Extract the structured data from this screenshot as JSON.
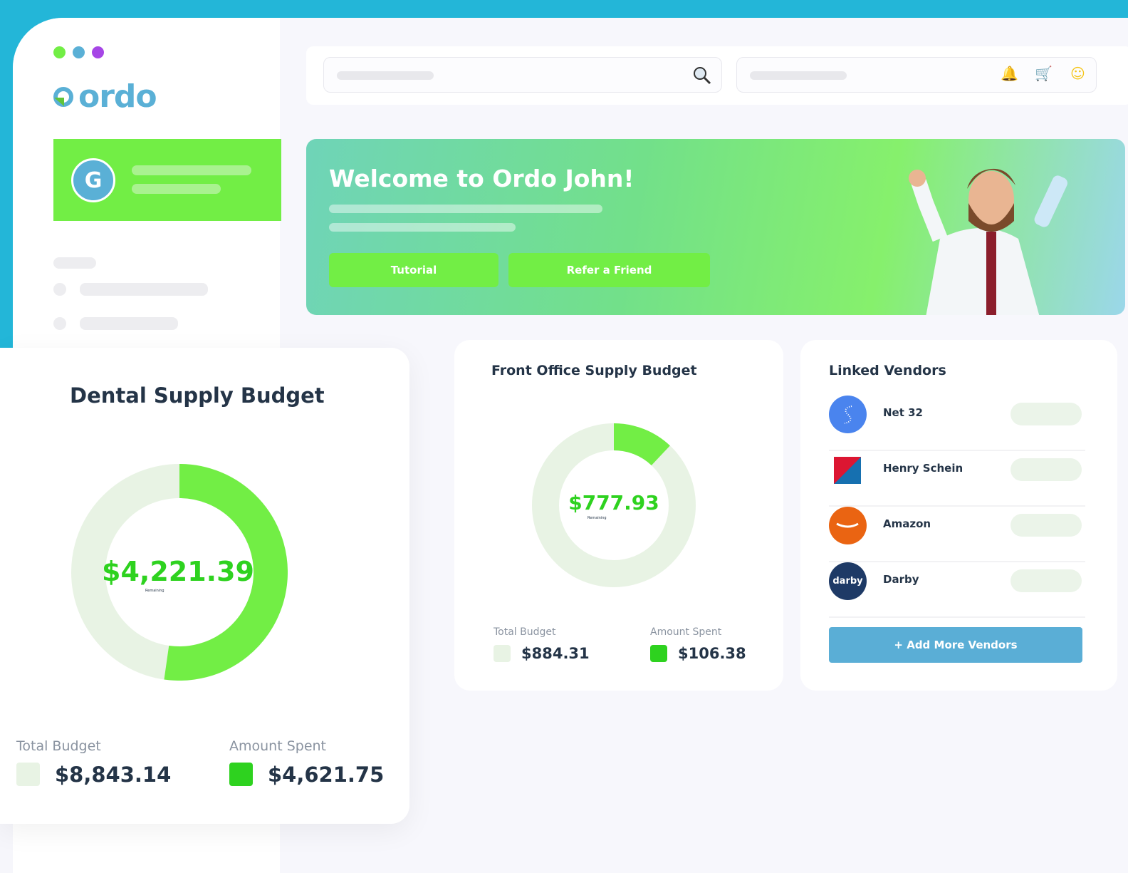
{
  "window_dots": [
    "#72ee45",
    "#5ab0d6",
    "#a646e6"
  ],
  "brand": {
    "logo": "ordo",
    "color": "#5ab0d6"
  },
  "user": {
    "avatar_letter": "G"
  },
  "header": {
    "icons": [
      "search-icon",
      "bell-icon",
      "cart-icon",
      "smiley-icon"
    ]
  },
  "banner": {
    "title": "Welcome to Ordo John!",
    "tutorial_label": "Tutorial",
    "refer_label": "Refer a Friend"
  },
  "dental": {
    "title": "Dental Supply Budget",
    "remaining": "$4,221.39",
    "remaining_label": "Remaining",
    "total_label": "Total Budget",
    "total": "$8,843.14",
    "spent_label": "Amount Spent",
    "spent": "$4,621.75"
  },
  "front": {
    "title": "Front Office Supply Budget",
    "remaining": "$777.93",
    "remaining_label": "Remaining",
    "total_label": "Total Budget",
    "total": "$884.31",
    "spent_label": "Amount Spent",
    "spent": "$106.38"
  },
  "vendors": {
    "title": "Linked Vendors",
    "items": [
      {
        "name": "Net 32",
        "color": "#4a84ee"
      },
      {
        "name": "Henry Schein",
        "color": "#1670b0"
      },
      {
        "name": "Amazon",
        "color": "#ea6412"
      },
      {
        "name": "Darby",
        "color": "#1e3a66"
      }
    ],
    "add_label": "+ Add More Vendors"
  },
  "chart_data": [
    {
      "type": "pie",
      "title": "Dental Supply Budget",
      "total": 8843.14,
      "spent": 4621.75,
      "remaining": 4221.39,
      "colors": {
        "spent": "#72ee45",
        "remaining": "#e8f3e4"
      }
    },
    {
      "type": "pie",
      "title": "Front Office Supply Budget",
      "total": 884.31,
      "spent": 106.38,
      "remaining": 777.93,
      "colors": {
        "spent": "#72ee45",
        "remaining": "#e8f3e4"
      }
    }
  ]
}
